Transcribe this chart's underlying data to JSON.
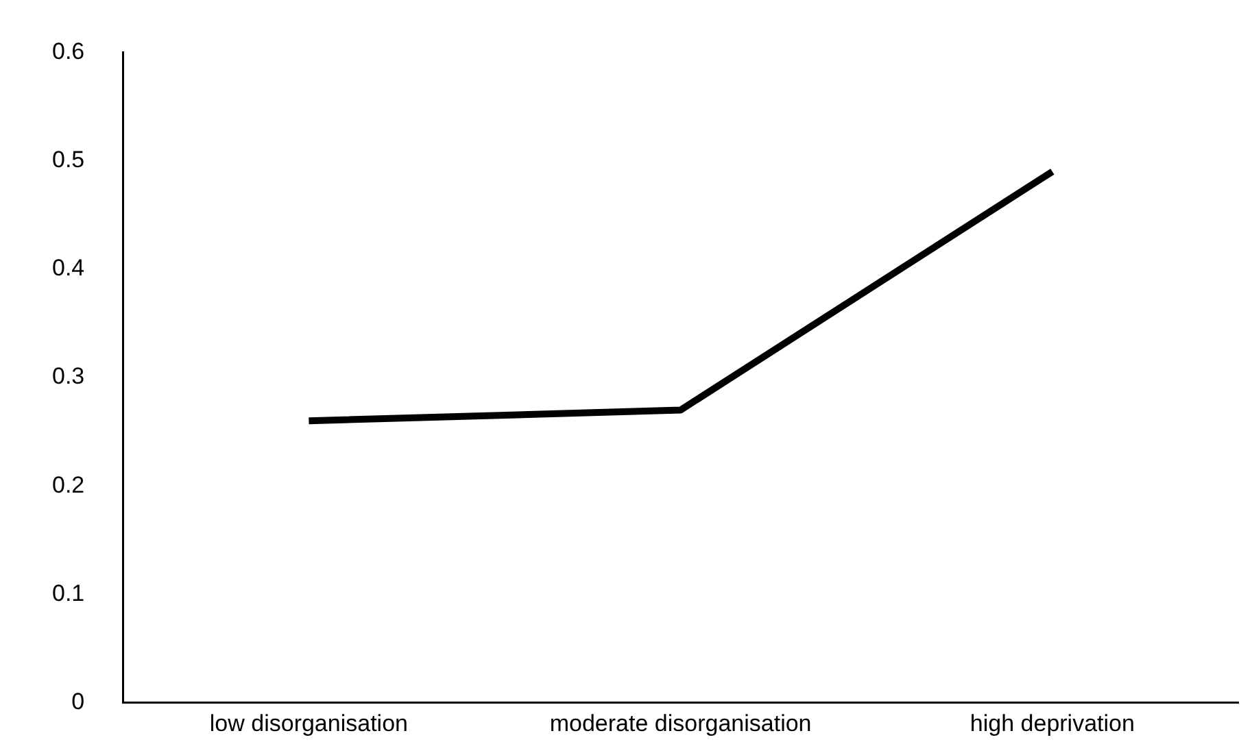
{
  "chart_data": {
    "type": "line",
    "categories": [
      "low disorganisation",
      "moderate disorganisation",
      "high deprivation"
    ],
    "series": [
      {
        "color": "#000000",
        "values": [
          0.26,
          0.27,
          0.49
        ]
      }
    ],
    "ylim": [
      0,
      0.6
    ],
    "yticks": [
      0,
      0.1,
      0.2,
      0.3,
      0.4,
      0.5,
      0.6
    ],
    "grid": false,
    "legend": false,
    "marker": "none",
    "line_style": "solid"
  }
}
